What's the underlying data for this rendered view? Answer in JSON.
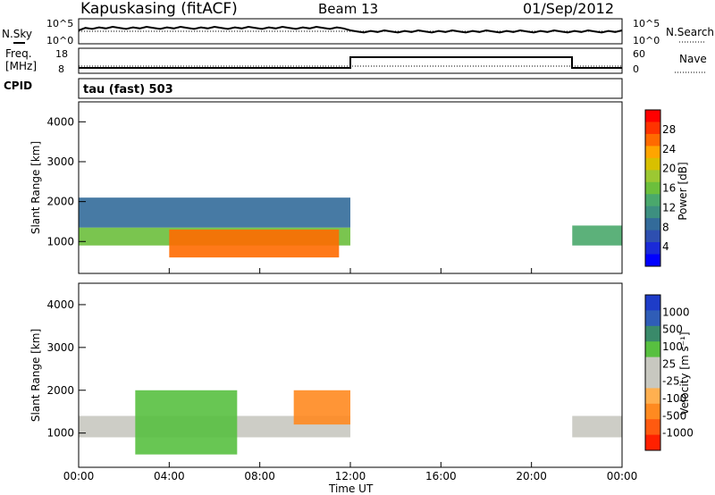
{
  "header": {
    "station": "Kapuskasing (fitACF)",
    "beam": "Beam 13",
    "date": "01/Sep/2012"
  },
  "strip": {
    "nsky_label": "N.Sky",
    "nsearch_label": "N.Search",
    "freq_label_1": "Freq.",
    "freq_label_2": "[MHz]",
    "nave_label": "Nave",
    "cpid_label": "CPID",
    "noise_ticks": [
      "10^5",
      "10^0"
    ],
    "freq_ticks": [
      "18",
      "8"
    ],
    "nave_ticks": [
      "60",
      "0"
    ],
    "cpid_text": "tau (fast) 503"
  },
  "panels": {
    "power": {
      "ylabel": "Slant Range [km]",
      "cbar_label": "Power [dB]",
      "cbar_ticks": [
        "28",
        "24",
        "20",
        "16",
        "12",
        "8",
        "4"
      ],
      "cbar_colors": [
        "#ff0000",
        "#ff3300",
        "#ff6a00",
        "#ffa500",
        "#d8c000",
        "#9cc832",
        "#6cbf3c",
        "#4aa86c",
        "#3d8f80",
        "#336b9a",
        "#2e4fb0",
        "#1a2ad8",
        "#0000ff"
      ]
    },
    "velocity": {
      "ylabel": "Slant Range [km]",
      "cbar_label": "Velocity [m s⁻¹]",
      "cbar_ticks": [
        "1000",
        "500",
        "100",
        "25",
        "-25",
        "-100",
        "-500",
        "-1000"
      ],
      "cbar_colors": [
        "#1e3cc8",
        "#2f5db7",
        "#3a8a6a",
        "#58c040",
        "#c8c8c0",
        "#c8c8c0",
        "#ffb050",
        "#ff8a20",
        "#ff5a10",
        "#ff2000"
      ]
    },
    "ytick_labels": [
      "4000",
      "3000",
      "2000",
      "1000"
    ]
  },
  "xaxis": {
    "title": "Time UT",
    "tick_labels": [
      "00:00",
      "04:00",
      "08:00",
      "12:00",
      "16:00",
      "20:00",
      "00:00"
    ]
  },
  "chart_data": {
    "type": "heatmap",
    "x_range_hours": [
      0,
      24
    ],
    "y_range_km": [
      200,
      4500
    ],
    "power_regions": [
      {
        "t0": 0.0,
        "t1": 12.0,
        "r0": 900,
        "r1": 1350,
        "value_db": 14
      },
      {
        "t0": 0.0,
        "t1": 12.0,
        "r0": 1350,
        "r1": 2100,
        "value_db": 8
      },
      {
        "t0": 4.0,
        "t1": 11.5,
        "r0": 600,
        "r1": 1300,
        "value_db": 26
      },
      {
        "t0": 21.8,
        "t1": 24.0,
        "r0": 900,
        "r1": 1400,
        "value_db": 12
      }
    ],
    "velocity_regions": [
      {
        "t0": 0.0,
        "t1": 12.0,
        "r0": 900,
        "r1": 1400,
        "value_ms": 0
      },
      {
        "t0": 2.5,
        "t1": 7.0,
        "r0": 500,
        "r1": 2000,
        "value_ms": 150
      },
      {
        "t0": 9.5,
        "t1": 12.0,
        "r0": 1200,
        "r1": 2000,
        "value_ms": -150
      },
      {
        "t0": 21.8,
        "t1": 24.0,
        "r0": 900,
        "r1": 1400,
        "value_ms": 0
      }
    ]
  }
}
